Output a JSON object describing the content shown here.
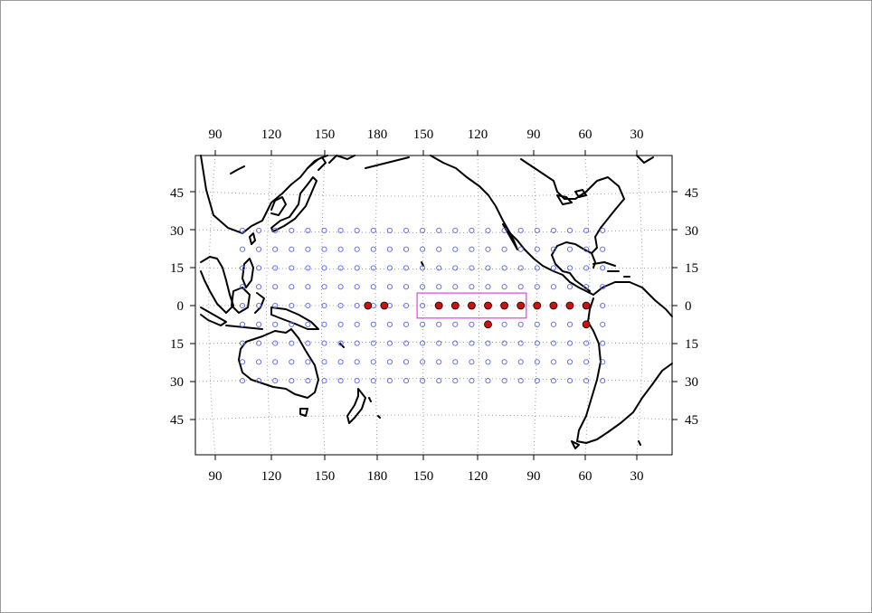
{
  "map": {
    "top_ticks": [
      "90",
      "120",
      "150",
      "180",
      "150",
      "120",
      "90",
      "60",
      "30"
    ],
    "bottom_ticks": [
      "90",
      "120",
      "150",
      "180",
      "150",
      "120",
      "90",
      "60",
      "30"
    ],
    "left_ticks": [
      "45",
      "30",
      "15",
      "0",
      "15",
      "30",
      "45"
    ],
    "right_ticks": [
      "45",
      "30",
      "15",
      "0",
      "15",
      "30",
      "45"
    ],
    "colors": {
      "grid_point": "#5a64e6",
      "selected_point": "#cc1111",
      "box": "#e040e0",
      "coastline": "#000000",
      "graticule": "#8a8a8a"
    },
    "grid_points": {
      "lon_east_start": 110,
      "lon_step_deg": 7.5,
      "count_per_row": 23,
      "lat_rows": [
        30,
        22.5,
        15,
        7.5,
        0,
        -7.5,
        -15,
        -22.5,
        -30
      ],
      "description_icon": "open-circle-icon"
    },
    "selected_points": [
      {
        "lon": 175,
        "lat": 0
      },
      {
        "lon": 167.5,
        "lat": 0
      },
      {
        "lon": 160,
        "lat": 0
      },
      {
        "lon": 152.5,
        "lat": 0
      },
      {
        "lon": 145,
        "lat": 0
      },
      {
        "lon": 137.5,
        "lat": 0
      },
      {
        "lon": 130,
        "lat": 0
      },
      {
        "lon": 122.5,
        "lat": 0
      },
      {
        "lon": 115,
        "lat": 0
      },
      {
        "lon": 107.5,
        "lat": 0
      },
      {
        "lon": 100,
        "lat": 0
      },
      {
        "lon": 92.5,
        "lat": 0
      },
      {
        "lon": 137.5,
        "lat": -7.5
      },
      {
        "lon": 92.5,
        "lat": -7.5
      }
    ],
    "region_box": {
      "lon_west": 170,
      "lon_east": 120,
      "lat_north": 5,
      "lat_south": -5
    }
  }
}
